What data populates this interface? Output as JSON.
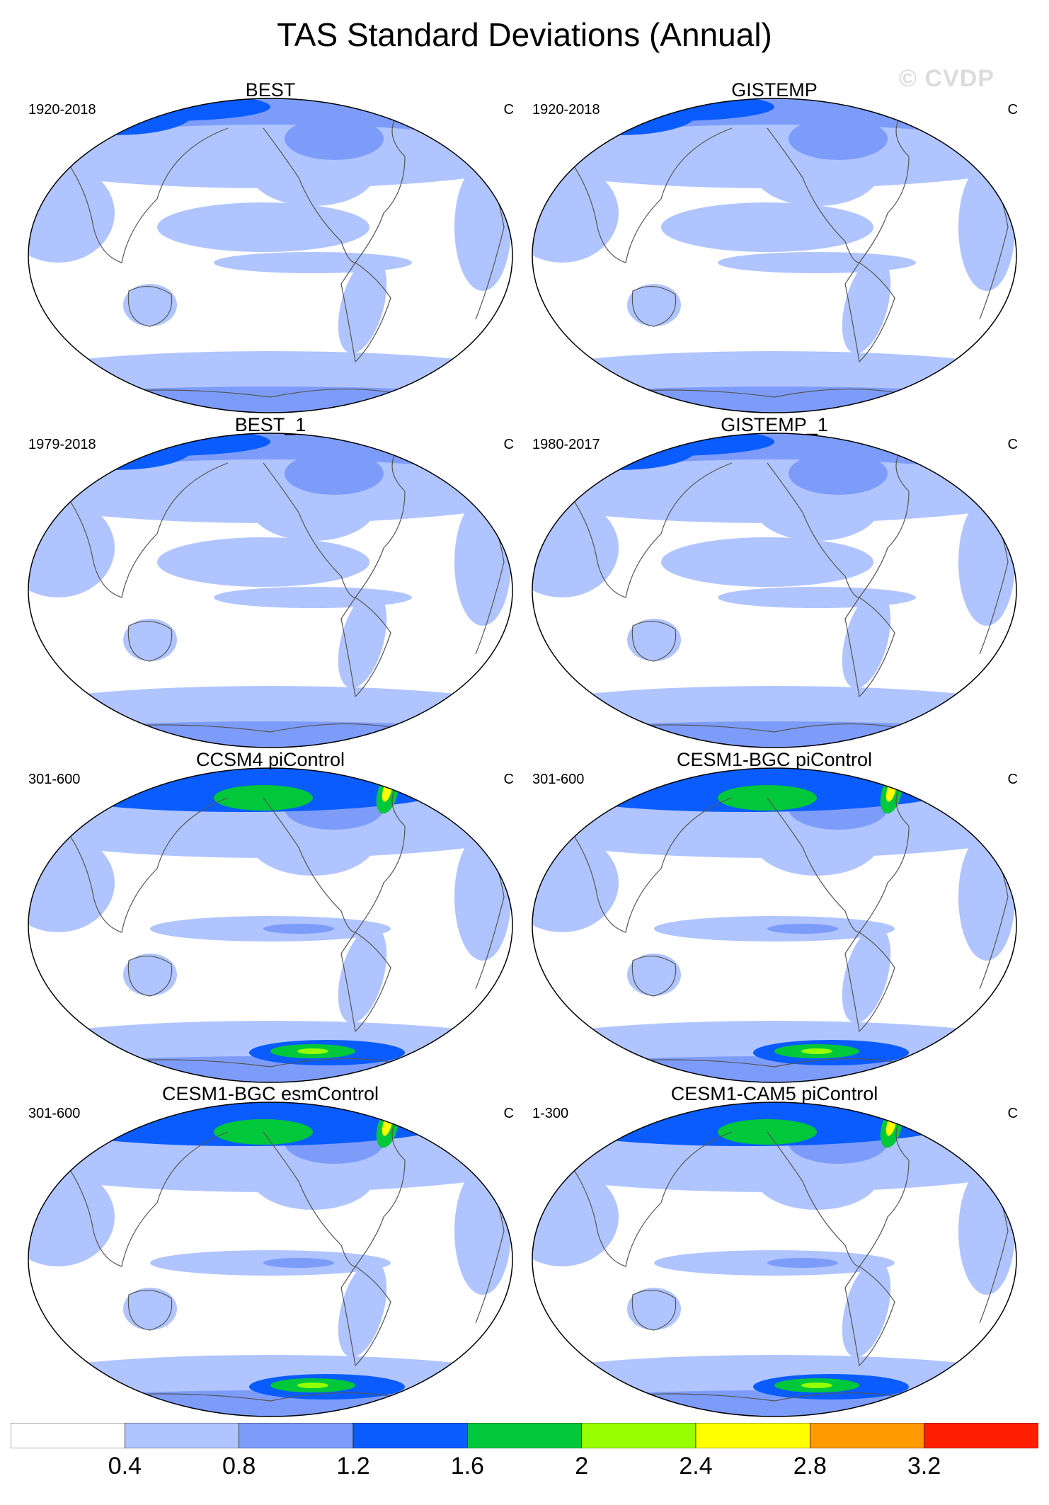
{
  "title": "TAS Standard Deviations (Annual)",
  "watermark": "© CVDP",
  "panels": [
    {
      "name": "BEST",
      "period": "1920-2018",
      "units": "C",
      "style": "obs"
    },
    {
      "name": "GISTEMP",
      "period": "1920-2018",
      "units": "C",
      "style": "obs"
    },
    {
      "name": "BEST_1",
      "period": "1979-2018",
      "units": "C",
      "style": "obs"
    },
    {
      "name": "GISTEMP_1",
      "period": "1980-2017",
      "units": "C",
      "style": "obs"
    },
    {
      "name": "CCSM4 piControl",
      "period": "301-600",
      "units": "C",
      "style": "model"
    },
    {
      "name": "CESM1-BGC piControl",
      "period": "301-600",
      "units": "C",
      "style": "model"
    },
    {
      "name": "CESM1-BGC esmControl",
      "period": "301-600",
      "units": "C",
      "style": "model"
    },
    {
      "name": "CESM1-CAM5 piControl",
      "period": "1-300",
      "units": "C",
      "style": "model"
    }
  ],
  "colorbar": {
    "labels": [
      "0.4",
      "0.8",
      "1.2",
      "1.6",
      "2",
      "2.4",
      "2.8",
      "3.2"
    ],
    "colors": [
      "#ffffff",
      "#b0c4ff",
      "#7d9cfa",
      "#0a5cff",
      "#00c83a",
      "#96ff00",
      "#ffff00",
      "#ff9a00",
      "#ff1e00"
    ]
  }
}
